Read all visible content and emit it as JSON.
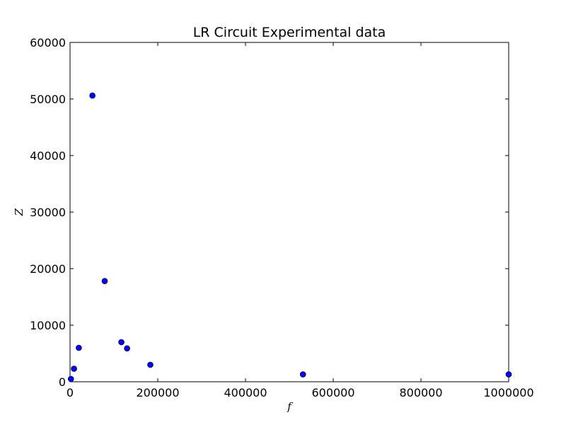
{
  "chart_data": {
    "type": "scatter",
    "title": "LR Circuit Experimental data",
    "xlabel": "f",
    "ylabel": "Z",
    "xlim": [
      0,
      1000000
    ],
    "ylim": [
      0,
      60000
    ],
    "xticks": [
      0,
      200000,
      400000,
      600000,
      800000,
      1000000
    ],
    "yticks": [
      0,
      10000,
      20000,
      30000,
      40000,
      50000,
      60000
    ],
    "xtick_labels": [
      "0",
      "200000",
      "400000",
      "600000",
      "800000",
      "1000000"
    ],
    "ytick_labels": [
      "0",
      "10000",
      "20000",
      "30000",
      "40000",
      "50000",
      "60000"
    ],
    "grid": false,
    "legend": false,
    "marker_color": "#0000ff",
    "points": [
      {
        "x": 2000,
        "y": 500
      },
      {
        "x": 9000,
        "y": 2300
      },
      {
        "x": 20000,
        "y": 6000
      },
      {
        "x": 51000,
        "y": 50600
      },
      {
        "x": 79000,
        "y": 17800
      },
      {
        "x": 117000,
        "y": 7000
      },
      {
        "x": 130000,
        "y": 5900
      },
      {
        "x": 183000,
        "y": 3000
      },
      {
        "x": 531000,
        "y": 1300
      },
      {
        "x": 1000000,
        "y": 1300
      }
    ]
  }
}
